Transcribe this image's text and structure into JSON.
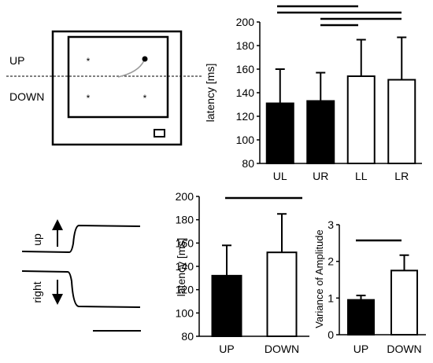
{
  "schematic": {
    "up_label": "UP",
    "down_label": "DOWN"
  },
  "traces": {
    "up_label": "up",
    "right_label": "right"
  },
  "chart_data": [
    {
      "type": "bar",
      "ylabel": "latency [ms]",
      "categories": [
        "UL",
        "UR",
        "LL",
        "LR"
      ],
      "values": [
        131,
        133,
        154,
        151
      ],
      "errors": [
        29,
        24,
        31,
        36
      ],
      "fills": [
        "#000000",
        "#000000",
        "#ffffff",
        "#ffffff"
      ],
      "ylim": [
        80,
        200
      ],
      "yticks": [
        80,
        100,
        120,
        140,
        160,
        180,
        200
      ]
    },
    {
      "type": "bar",
      "ylabel": "latency [ms]",
      "categories": [
        "UP",
        "DOWN"
      ],
      "values": [
        132,
        152
      ],
      "errors": [
        26,
        33
      ],
      "fills": [
        "#000000",
        "#ffffff"
      ],
      "ylim": [
        80,
        200
      ],
      "yticks": [
        80,
        100,
        120,
        140,
        160,
        180,
        200
      ]
    },
    {
      "type": "bar",
      "ylabel": "Variance of Amplitude",
      "categories": [
        "UP",
        "DOWN"
      ],
      "values": [
        0.95,
        1.75
      ],
      "errors": [
        0.12,
        0.42
      ],
      "fills": [
        "#000000",
        "#ffffff"
      ],
      "ylim": [
        0,
        3
      ],
      "yticks": [
        0,
        1,
        2,
        3
      ]
    }
  ]
}
